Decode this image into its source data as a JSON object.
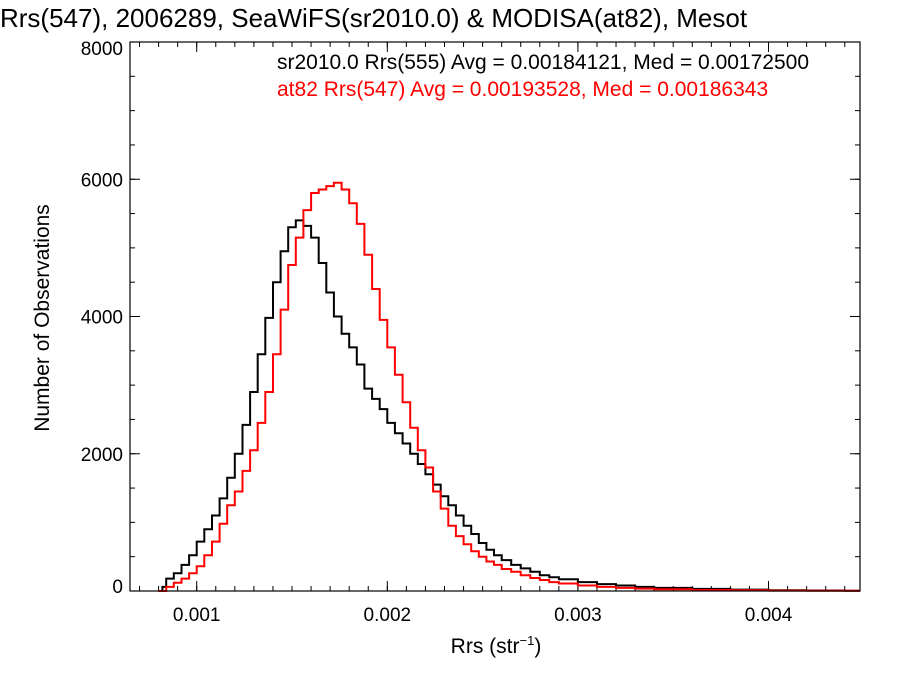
{
  "chart_data": {
    "type": "line",
    "title": "Rrs(547), 2006289, SeaWiFS(sr2010.0) & MODISA(at82), Mesot",
    "xlabel": "Rrs (str",
    "xlabel_sup": "−1",
    "xlabel_tail": ")",
    "ylabel": "Number of Observations",
    "xlim": [
      0.00065,
      0.00448
    ],
    "ylim": [
      0,
      8000
    ],
    "xticks": [
      {
        "value": 0.001,
        "label": "0.001"
      },
      {
        "value": 0.002,
        "label": "0.002"
      },
      {
        "value": 0.003,
        "label": "0.003"
      },
      {
        "value": 0.004,
        "label": "0.004"
      }
    ],
    "yticks": [
      {
        "value": 0,
        "label": "0"
      },
      {
        "value": 2000,
        "label": "2000"
      },
      {
        "value": 4000,
        "label": "4000"
      },
      {
        "value": 6000,
        "label": "6000"
      },
      {
        "value": 8000,
        "label": "8000"
      }
    ],
    "grid": false,
    "legend_position": "top-right",
    "series": [
      {
        "name": "sr2010.0",
        "legend": "sr2010.0 Rrs(555) Avg = 0.00184121, Med = 0.00172500",
        "color": "#000000",
        "x": [
          0.0008,
          0.00082,
          0.00084,
          0.00088,
          0.00092,
          0.00096,
          0.001,
          0.00104,
          0.00108,
          0.00112,
          0.00116,
          0.0012,
          0.00124,
          0.00128,
          0.00132,
          0.00136,
          0.0014,
          0.00144,
          0.00148,
          0.00152,
          0.00156,
          0.0016,
          0.00164,
          0.00168,
          0.00172,
          0.00176,
          0.0018,
          0.00184,
          0.00188,
          0.00192,
          0.00196,
          0.002,
          0.00204,
          0.00208,
          0.00212,
          0.00216,
          0.0022,
          0.00224,
          0.00228,
          0.00232,
          0.00236,
          0.0024,
          0.00244,
          0.00248,
          0.00252,
          0.00256,
          0.0026,
          0.00265,
          0.0027,
          0.00275,
          0.0028,
          0.00285,
          0.0029,
          0.003,
          0.0031,
          0.0032,
          0.0033,
          0.0034,
          0.0036,
          0.0038,
          0.004,
          0.0042,
          0.0044
        ],
        "y": [
          0,
          60,
          180,
          260,
          380,
          520,
          720,
          900,
          1100,
          1350,
          1650,
          2000,
          2420,
          2900,
          3450,
          3980,
          4500,
          4950,
          5300,
          5400,
          5320,
          5150,
          4780,
          4350,
          4000,
          3750,
          3550,
          3300,
          2950,
          2800,
          2650,
          2450,
          2300,
          2150,
          2000,
          1850,
          1700,
          1550,
          1380,
          1250,
          1100,
          950,
          830,
          700,
          600,
          520,
          450,
          380,
          330,
          280,
          230,
          200,
          170,
          130,
          100,
          80,
          60,
          45,
          30,
          20,
          12,
          8,
          5
        ]
      },
      {
        "name": "at82",
        "legend": "at82 Rrs(547) Avg = 0.00193528, Med = 0.00186343",
        "color": "#ff0000",
        "x": [
          0.0008,
          0.00084,
          0.00088,
          0.00092,
          0.00096,
          0.001,
          0.00104,
          0.00108,
          0.00112,
          0.00116,
          0.0012,
          0.00124,
          0.00128,
          0.00132,
          0.00136,
          0.0014,
          0.00144,
          0.00148,
          0.00152,
          0.00156,
          0.0016,
          0.00164,
          0.00168,
          0.00172,
          0.00176,
          0.0018,
          0.00184,
          0.00188,
          0.00192,
          0.00196,
          0.002,
          0.00204,
          0.00208,
          0.00212,
          0.00216,
          0.0022,
          0.00224,
          0.00228,
          0.00232,
          0.00236,
          0.0024,
          0.00244,
          0.00248,
          0.00252,
          0.00256,
          0.0026,
          0.00265,
          0.0027,
          0.00275,
          0.0028,
          0.00285,
          0.0029,
          0.003,
          0.0031,
          0.0032,
          0.0033,
          0.0034,
          0.0036,
          0.0038,
          0.004,
          0.0042,
          0.0044
        ],
        "y": [
          0,
          60,
          120,
          180,
          260,
          360,
          520,
          720,
          980,
          1250,
          1450,
          1750,
          2050,
          2450,
          2900,
          3450,
          4100,
          4750,
          5150,
          5550,
          5800,
          5850,
          5900,
          5950,
          5850,
          5650,
          5350,
          4900,
          4400,
          3950,
          3550,
          3150,
          2750,
          2380,
          2050,
          1800,
          1450,
          1200,
          950,
          800,
          680,
          580,
          500,
          430,
          380,
          320,
          280,
          230,
          190,
          160,
          130,
          110,
          80,
          60,
          45,
          35,
          25,
          15,
          10,
          6,
          4,
          3
        ]
      }
    ]
  }
}
